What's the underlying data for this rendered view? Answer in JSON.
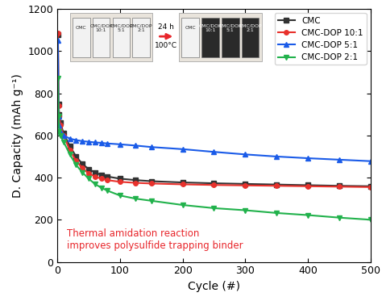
{
  "chart_data": {
    "type": "line",
    "xlabel": "Cycle (#)",
    "ylabel": "D. Capacity (mAh g⁻¹)",
    "xlim": [
      0,
      500
    ],
    "xticks": [
      0,
      100,
      200,
      300,
      400,
      500
    ],
    "ylim": [
      0,
      1200
    ],
    "yticks": [
      0,
      200,
      400,
      600,
      800,
      1000,
      1200
    ],
    "legend": "upper right",
    "x": [
      1,
      2,
      3,
      5,
      10,
      20,
      30,
      40,
      50,
      60,
      70,
      80,
      100,
      125,
      150,
      200,
      250,
      300,
      350,
      400,
      450,
      500
    ],
    "series": [
      {
        "name": "CMC",
        "color": "#333333",
        "marker": "square",
        "values": [
          1080,
          750,
          700,
          660,
          610,
          550,
          500,
          465,
          440,
          425,
          413,
          405,
          395,
          388,
          383,
          377,
          373,
          370,
          367,
          364,
          361,
          359
        ]
      },
      {
        "name": "CMC-DOP 10:1",
        "color": "#e8312c",
        "marker": "circle",
        "values": [
          1085,
          740,
          690,
          650,
          600,
          530,
          480,
          445,
          420,
          405,
          395,
          388,
          380,
          375,
          372,
          368,
          365,
          363,
          361,
          359,
          357,
          355
        ]
      },
      {
        "name": "CMC-DOP 5:1",
        "color": "#1a5be8",
        "marker": "triangle_up",
        "values": [
          1050,
          690,
          650,
          620,
          600,
          585,
          578,
          573,
          570,
          567,
          565,
          562,
          558,
          552,
          545,
          535,
          522,
          510,
          500,
          492,
          485,
          478
        ]
      },
      {
        "name": "CMC-DOP 2:1",
        "color": "#22b24c",
        "marker": "triangle_down",
        "values": [
          870,
          690,
          620,
          600,
          570,
          510,
          460,
          425,
          395,
          370,
          352,
          338,
          315,
          300,
          290,
          270,
          255,
          245,
          232,
          222,
          210,
          200
        ]
      }
    ],
    "annotations": [
      {
        "text": "Thermal amidation reaction\nimproves polysulfide trapping binder",
        "color": "#e8262b"
      }
    ],
    "inset": {
      "before": [
        "CMC",
        "CMC/DOP\n10:1",
        "CMC/DOP\n5:1",
        "CMC/DOP\n2:1"
      ],
      "after": [
        "CMC",
        "CMC/DOP\n10:1",
        "CMC/DOP\n5:1",
        "CMC/DOP\n2:1"
      ],
      "arrow_texts": [
        "24 h",
        "100°C"
      ]
    }
  }
}
